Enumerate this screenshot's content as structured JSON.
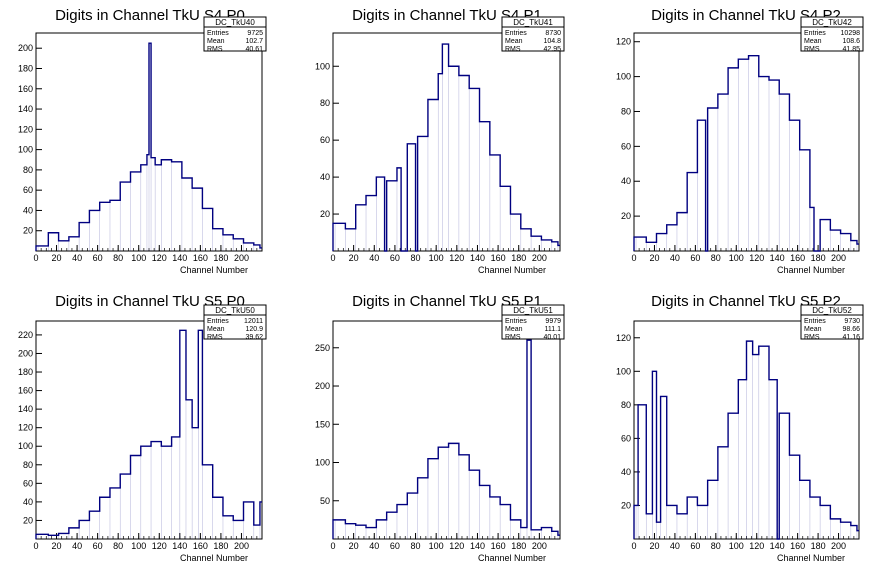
{
  "chart_data": [
    {
      "type": "histogram",
      "title": "Digits in Channel TkU S4 P0",
      "xlabel": "Channel Number",
      "ylabel": "",
      "xlim": [
        0,
        220
      ],
      "ylim": [
        0,
        215
      ],
      "xticks": [
        0,
        20,
        40,
        60,
        80,
        100,
        120,
        140,
        160,
        180,
        200
      ],
      "yticks": [
        20,
        40,
        60,
        80,
        100,
        120,
        140,
        160,
        180,
        200
      ],
      "stats": {
        "name": "DC_TkU40",
        "rows": [
          [
            "Entries",
            "9725"
          ],
          [
            "Mean",
            "102.7"
          ],
          [
            "RMS",
            "40.61"
          ]
        ]
      },
      "x": [
        2,
        12,
        22,
        32,
        42,
        52,
        62,
        72,
        82,
        92,
        102,
        108,
        110,
        112,
        116,
        122,
        132,
        142,
        152,
        162,
        172,
        182,
        192,
        202,
        212,
        218
      ],
      "values": [
        5,
        18,
        10,
        14,
        28,
        40,
        48,
        50,
        68,
        78,
        85,
        95,
        205,
        92,
        85,
        90,
        88,
        72,
        62,
        42,
        22,
        16,
        12,
        8,
        6,
        3
      ]
    },
    {
      "type": "histogram",
      "title": "Digits in Channel TkU S4 P1",
      "xlabel": "Channel Number",
      "ylabel": "",
      "xlim": [
        0,
        220
      ],
      "ylim": [
        0,
        118
      ],
      "xticks": [
        0,
        20,
        40,
        60,
        80,
        100,
        120,
        140,
        160,
        180,
        200
      ],
      "yticks": [
        20,
        40,
        60,
        80,
        100
      ],
      "stats": {
        "name": "DC_TkU41",
        "rows": [
          [
            "Entries",
            "8730"
          ],
          [
            "Mean",
            "104.8"
          ],
          [
            "RMS",
            "42.95"
          ]
        ]
      },
      "x": [
        2,
        12,
        22,
        32,
        42,
        50,
        52,
        62,
        66,
        72,
        80,
        82,
        92,
        102,
        106,
        112,
        122,
        132,
        142,
        152,
        162,
        172,
        182,
        192,
        202,
        212,
        218
      ],
      "values": [
        15,
        12,
        25,
        30,
        40,
        0,
        38,
        45,
        0,
        58,
        0,
        62,
        82,
        96,
        112,
        100,
        95,
        88,
        70,
        52,
        35,
        20,
        12,
        8,
        6,
        5,
        3
      ]
    },
    {
      "type": "histogram",
      "title": "Digits in Channel TkU S4 P2",
      "xlabel": "Channel Number",
      "ylabel": "",
      "xlim": [
        0,
        220
      ],
      "ylim": [
        0,
        125
      ],
      "xticks": [
        0,
        20,
        40,
        60,
        80,
        100,
        120,
        140,
        160,
        180,
        200
      ],
      "yticks": [
        20,
        40,
        60,
        80,
        100,
        120
      ],
      "stats": {
        "name": "DC_TkU42",
        "rows": [
          [
            "Entries",
            "10298"
          ],
          [
            "Mean",
            "108.6"
          ],
          [
            "RMS",
            "41.85"
          ]
        ]
      },
      "x": [
        2,
        12,
        22,
        32,
        42,
        52,
        62,
        70,
        72,
        82,
        92,
        102,
        112,
        122,
        132,
        142,
        152,
        162,
        172,
        176,
        182,
        192,
        202,
        212,
        218
      ],
      "values": [
        8,
        5,
        10,
        15,
        22,
        45,
        75,
        0,
        82,
        90,
        105,
        110,
        112,
        100,
        98,
        90,
        75,
        58,
        25,
        0,
        18,
        12,
        10,
        6,
        4
      ]
    },
    {
      "type": "histogram",
      "title": "Digits in Channel TkU S5 P0",
      "xlabel": "Channel Number",
      "ylabel": "",
      "xlim": [
        0,
        220
      ],
      "ylim": [
        0,
        235
      ],
      "xticks": [
        0,
        20,
        40,
        60,
        80,
        100,
        120,
        140,
        160,
        180,
        200
      ],
      "yticks": [
        20,
        40,
        60,
        80,
        100,
        120,
        140,
        160,
        180,
        200,
        220
      ],
      "stats": {
        "name": "DC_TkU50",
        "rows": [
          [
            "Entries",
            "12011"
          ],
          [
            "Mean",
            "120.9"
          ],
          [
            "RMS",
            "39.62"
          ]
        ]
      },
      "x": [
        2,
        12,
        22,
        32,
        42,
        52,
        62,
        72,
        82,
        92,
        102,
        112,
        122,
        132,
        140,
        146,
        152,
        158,
        162,
        172,
        182,
        192,
        202,
        212,
        218
      ],
      "values": [
        5,
        4,
        6,
        12,
        20,
        30,
        45,
        55,
        70,
        90,
        100,
        105,
        100,
        110,
        225,
        150,
        120,
        225,
        80,
        45,
        25,
        20,
        40,
        15,
        40
      ]
    },
    {
      "type": "histogram",
      "title": "Digits in Channel TkU S5 P1",
      "xlabel": "Channel Number",
      "ylabel": "",
      "xlim": [
        0,
        220
      ],
      "ylim": [
        0,
        285
      ],
      "xticks": [
        0,
        20,
        40,
        60,
        80,
        100,
        120,
        140,
        160,
        180,
        200
      ],
      "yticks": [
        50,
        100,
        150,
        200,
        250
      ],
      "stats": {
        "name": "DC_TkU51",
        "rows": [
          [
            "Entries",
            "9979"
          ],
          [
            "Mean",
            "111.1"
          ],
          [
            "RMS",
            "40.01"
          ]
        ]
      },
      "x": [
        2,
        12,
        22,
        32,
        42,
        52,
        62,
        72,
        82,
        92,
        102,
        112,
        122,
        132,
        142,
        152,
        162,
        172,
        182,
        188,
        192,
        202,
        212,
        218
      ],
      "values": [
        25,
        20,
        18,
        15,
        25,
        35,
        45,
        60,
        80,
        105,
        120,
        125,
        110,
        90,
        70,
        55,
        45,
        25,
        15,
        260,
        12,
        15,
        10,
        5
      ]
    },
    {
      "type": "histogram",
      "title": "Digits in Channel TkU S5 P2",
      "xlabel": "Channel Number",
      "ylabel": "",
      "xlim": [
        0,
        220
      ],
      "ylim": [
        0,
        130
      ],
      "xticks": [
        0,
        20,
        40,
        60,
        80,
        100,
        120,
        140,
        160,
        180,
        200
      ],
      "yticks": [
        20,
        40,
        60,
        80,
        100,
        120
      ],
      "stats": {
        "name": "DC_TkU52",
        "rows": [
          [
            "Entries",
            "9730"
          ],
          [
            "Mean",
            "98.66"
          ],
          [
            "RMS",
            "41.16"
          ]
        ]
      },
      "x": [
        2,
        4,
        12,
        18,
        22,
        26,
        32,
        42,
        52,
        62,
        72,
        82,
        92,
        102,
        110,
        116,
        122,
        132,
        140,
        142,
        152,
        162,
        172,
        182,
        192,
        202,
        212,
        218
      ],
      "values": [
        20,
        80,
        15,
        100,
        10,
        85,
        20,
        15,
        25,
        20,
        35,
        55,
        75,
        95,
        118,
        110,
        115,
        95,
        0,
        75,
        50,
        35,
        25,
        20,
        12,
        10,
        8,
        5
      ]
    }
  ]
}
